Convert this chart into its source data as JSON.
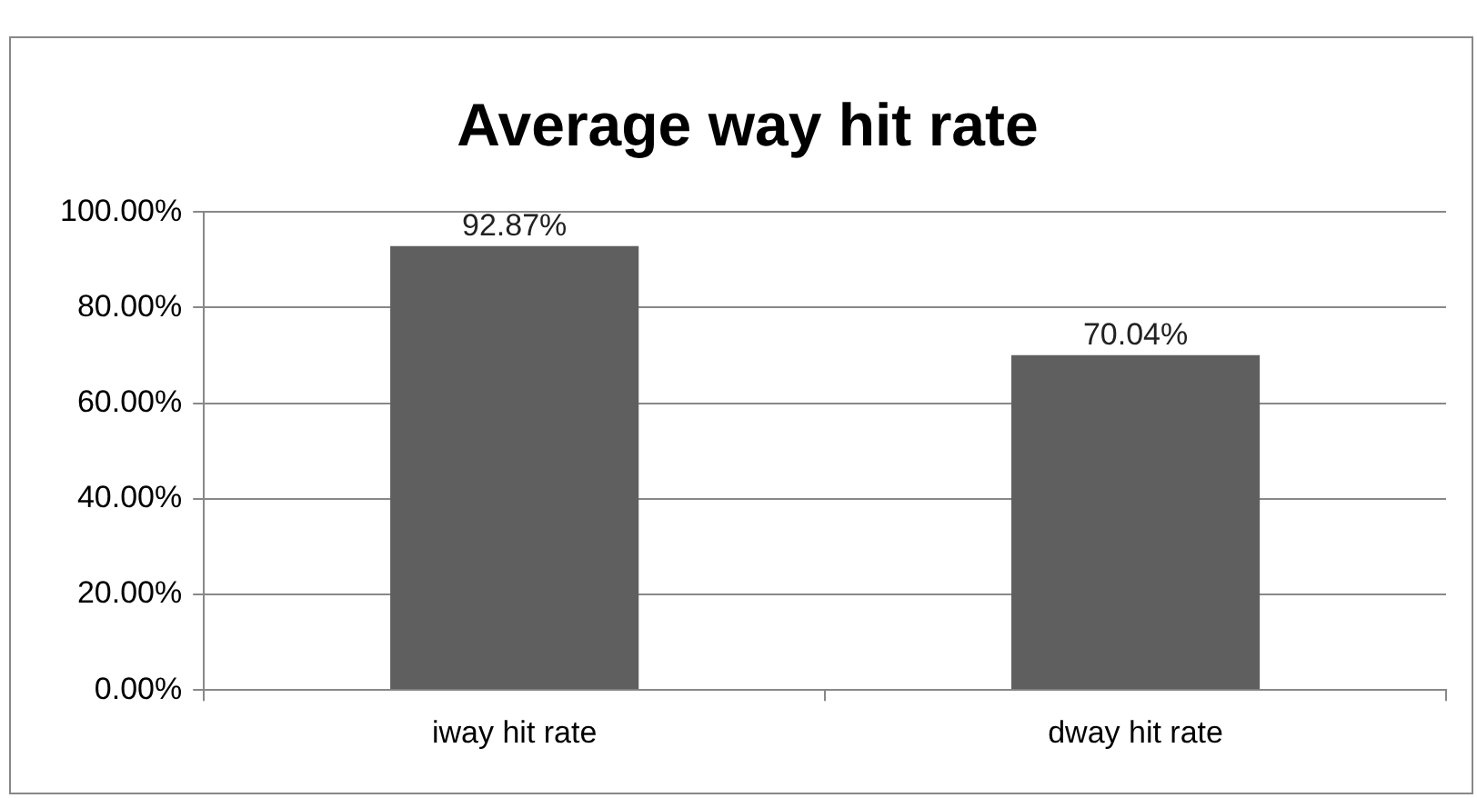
{
  "chart_data": {
    "type": "bar",
    "title": "Average way hit rate",
    "categories": [
      "iway hit rate",
      "dway hit rate"
    ],
    "values": [
      92.87,
      70.04
    ],
    "value_labels": [
      "92.87%",
      "70.04%"
    ],
    "color": "#5f5f5f",
    "ylim": [
      0,
      100
    ],
    "yticks": [
      {
        "value": 0,
        "label": "0.00%"
      },
      {
        "value": 20,
        "label": "20.00%"
      },
      {
        "value": 40,
        "label": "40.00%"
      },
      {
        "value": 60,
        "label": "60.00%"
      },
      {
        "value": 80,
        "label": "80.00%"
      },
      {
        "value": 100,
        "label": "100.00%"
      }
    ],
    "grid": "y",
    "legend": false
  }
}
